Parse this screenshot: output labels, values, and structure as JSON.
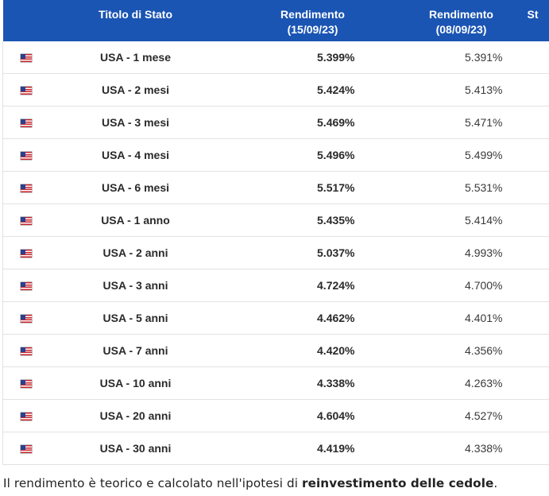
{
  "table": {
    "headers": {
      "flag": "",
      "name": "Titolo di Stato",
      "yield_current_line1": "Rendimento",
      "yield_current_line2": "(15/09/23)",
      "yield_previous_line1": "Rendimento",
      "yield_previous_line2": "(08/09/23)",
      "next_partial": "St"
    },
    "flag_icon": "us-flag-icon",
    "colors": {
      "header_bg": "#1b55b3",
      "header_text": "#ffffff",
      "row_border": "#e2e2e2"
    },
    "rows": [
      {
        "name": "USA - 1 mese",
        "yield_current": "5.399%",
        "yield_previous": "5.391%"
      },
      {
        "name": "USA - 2 mesi",
        "yield_current": "5.424%",
        "yield_previous": "5.413%"
      },
      {
        "name": "USA - 3 mesi",
        "yield_current": "5.469%",
        "yield_previous": "5.471%"
      },
      {
        "name": "USA - 4 mesi",
        "yield_current": "5.496%",
        "yield_previous": "5.499%"
      },
      {
        "name": "USA - 6 mesi",
        "yield_current": "5.517%",
        "yield_previous": "5.531%"
      },
      {
        "name": "USA - 1 anno",
        "yield_current": "5.435%",
        "yield_previous": "5.414%"
      },
      {
        "name": "USA - 2 anni",
        "yield_current": "5.037%",
        "yield_previous": "4.993%"
      },
      {
        "name": "USA - 3 anni",
        "yield_current": "4.724%",
        "yield_previous": "4.700%"
      },
      {
        "name": "USA - 5 anni",
        "yield_current": "4.462%",
        "yield_previous": "4.401%"
      },
      {
        "name": "USA - 7 anni",
        "yield_current": "4.420%",
        "yield_previous": "4.356%"
      },
      {
        "name": "USA - 10 anni",
        "yield_current": "4.338%",
        "yield_previous": "4.263%"
      },
      {
        "name": "USA - 20 anni",
        "yield_current": "4.604%",
        "yield_previous": "4.527%"
      },
      {
        "name": "USA - 30 anni",
        "yield_current": "4.419%",
        "yield_previous": "4.338%"
      }
    ]
  },
  "note": {
    "text_before": "Il rendimento è teorico e calcolato nell'ipotesi di ",
    "text_bold": "reinvestimento delle cedole",
    "text_after": "."
  }
}
